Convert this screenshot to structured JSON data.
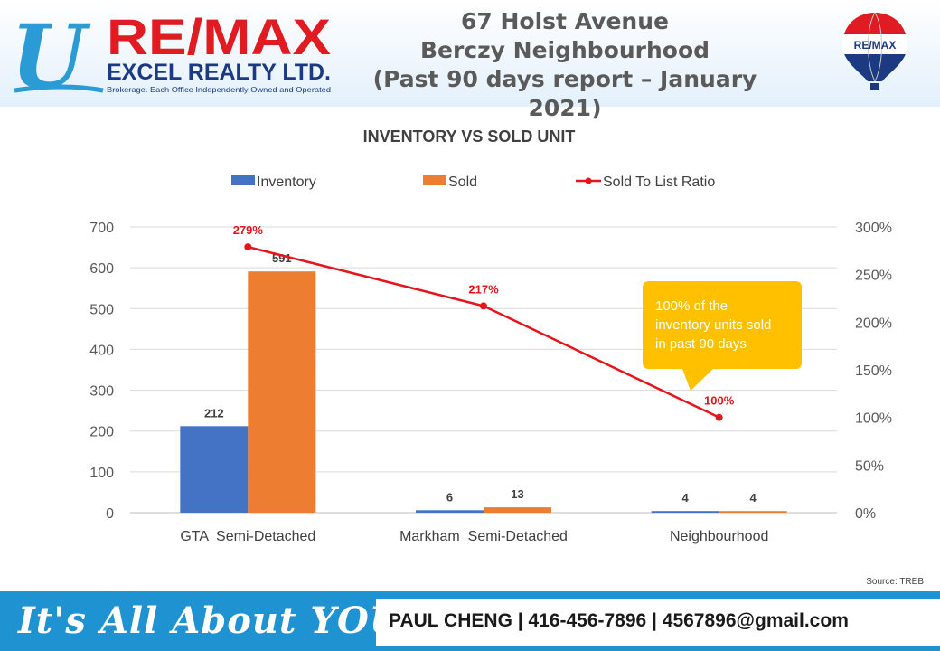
{
  "header": {
    "logo": {
      "brand": "RE/MAX",
      "company": "EXCEL REALTY LTD.",
      "tagline": "Brokerage. Each Office Independently Owned and Operated",
      "letter": "U"
    },
    "title_lines": [
      "67 Holst Avenue",
      "Berczy Neighbourhood",
      "(Past 90 days report – January 2021)"
    ],
    "balloon_label": "RE/MAX"
  },
  "chart_data": {
    "type": "bar",
    "title": "INVENTORY VS SOLD UNIT",
    "categories": [
      "GTA  Semi-Detached",
      "Markham  Semi-Detached",
      "Neighbourhood"
    ],
    "series": [
      {
        "name": "Inventory",
        "type": "bar",
        "color": "#4472c4",
        "values": [
          212,
          6,
          4
        ],
        "labels": [
          "212",
          "6",
          "4"
        ]
      },
      {
        "name": "Sold",
        "type": "bar",
        "color": "#ed7d31",
        "values": [
          591,
          13,
          4
        ],
        "labels": [
          "591",
          "13",
          "4"
        ]
      },
      {
        "name": "Sold To List Ratio",
        "type": "line",
        "axis": "right",
        "color": "#e8141b",
        "values": [
          279,
          217,
          100
        ],
        "labels": [
          "279%",
          "217%",
          "100%"
        ]
      }
    ],
    "ylim": [
      0,
      700
    ],
    "yticks": [
      "0",
      "100",
      "200",
      "300",
      "400",
      "500",
      "600",
      "700"
    ],
    "y2lim": [
      0,
      300
    ],
    "y2ticks": [
      "0%",
      "50%",
      "100%",
      "150%",
      "200%",
      "250%",
      "300%"
    ],
    "grid": true,
    "legend": "top",
    "callout": {
      "lines": [
        "100% of the",
        "inventory units sold",
        "in past 90 days"
      ],
      "color": "#ffc000"
    },
    "source": "Source: TREB"
  },
  "footer": {
    "tagline": "It's All About YOU",
    "contact": "PAUL CHENG | 416-456-7896 | 4567896@gmail.com"
  }
}
